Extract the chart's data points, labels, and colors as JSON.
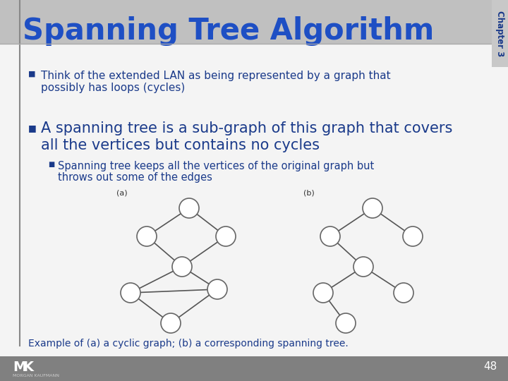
{
  "title": "Spanning Tree Algorithm",
  "chapter": "Chapter 3",
  "slide_bg": "#f4f4f4",
  "title_color": "#1e4fc4",
  "title_bar_color": "#c0c0c0",
  "body_text_color": "#1a3a8a",
  "bullet1_line1": "Think of the extended LAN as being represented by a graph that",
  "bullet1_line2": "possibly has loops (cycles)",
  "bullet2_line1": "A spanning tree is a sub-graph of this graph that covers",
  "bullet2_line2": "all the vertices but contains no cycles",
  "sub_bullet_line1": "Spanning tree keeps all the vertices of the original graph but",
  "sub_bullet_line2": "throws out some of the edges",
  "caption": "Example of (a) a cyclic graph; (b) a corresponding spanning tree.",
  "label_a": "(a)",
  "label_b": "(b)",
  "node_color": "white",
  "edge_color": "#555555",
  "node_edge_color": "#666666",
  "footer_bg": "#808080",
  "page_num": "48",
  "left_line_color": "#888888",
  "chapter_bg": "#c8c8c8",
  "chapter_text_color": "#1a3a8a"
}
